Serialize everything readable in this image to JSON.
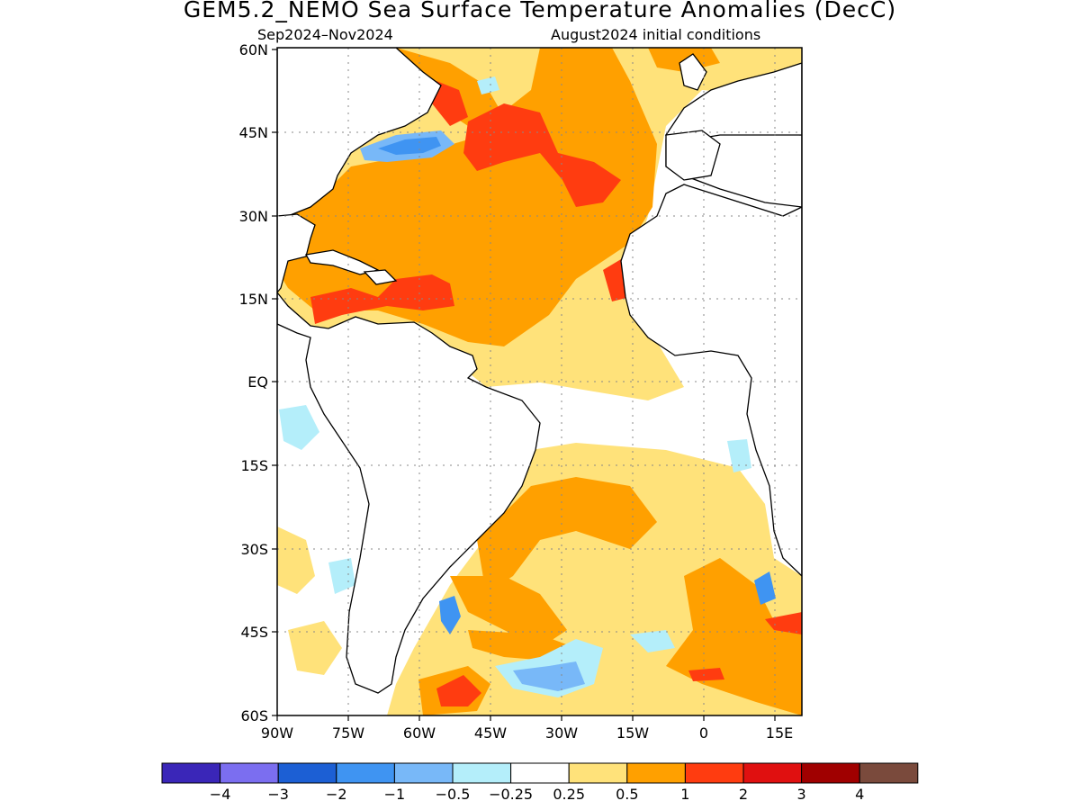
{
  "title": "GEM5.2_NEMO Sea Surface Temperature Anomalies (DecC)",
  "subtitle_left": "Sep2024–Nov2024",
  "subtitle_right": "August2024 initial conditions",
  "lat_labels": [
    "60N",
    "45N",
    "30N",
    "15N",
    "EQ",
    "15S",
    "30S",
    "45S",
    "60S"
  ],
  "lon_labels": [
    "90W",
    "75W",
    "60W",
    "45W",
    "30W",
    "15W",
    "0",
    "15E"
  ],
  "colorbar": {
    "colors": [
      "#3a26b8",
      "#7b6ef0",
      "#1c5fd4",
      "#3f94f2",
      "#78b8f8",
      "#b4eefa",
      "#ffffff",
      "#ffe27a",
      "#ffa000",
      "#ff3c10",
      "#e01010",
      "#a00000",
      "#7a4a3c"
    ],
    "labels": [
      "−4",
      "−3",
      "−2",
      "−1",
      "−0.5",
      "−0.25",
      "0.25",
      "0.5",
      "1",
      "2",
      "3",
      "4"
    ]
  }
}
